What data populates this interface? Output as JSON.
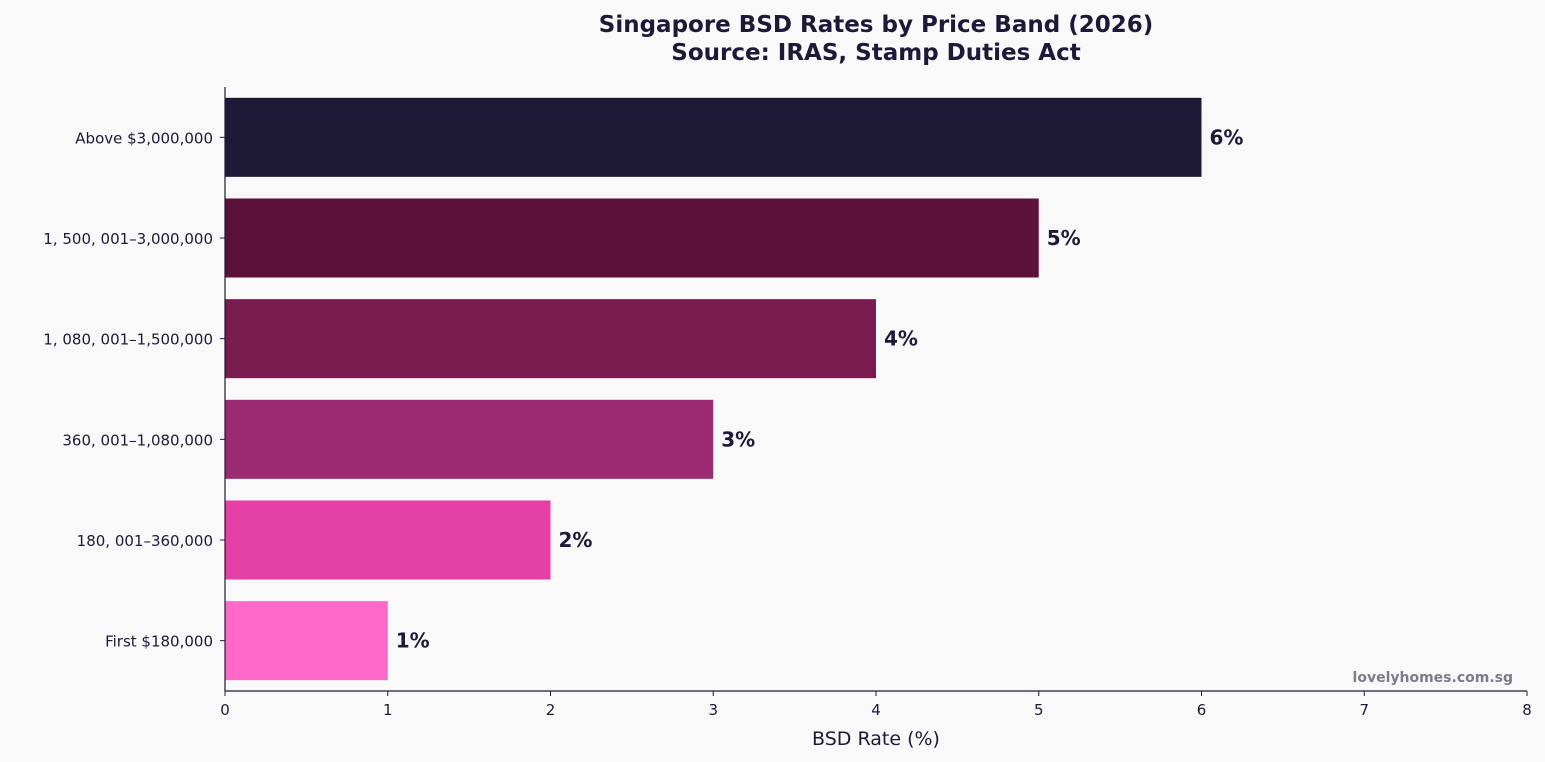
{
  "chart_data": {
    "type": "bar",
    "orientation": "horizontal",
    "title": "Singapore BSD Rates by Price Band (2026)",
    "subtitle": "Source: IRAS, Stamp Duties Act",
    "xlabel": "BSD Rate (%)",
    "ylabel": "",
    "categories": [
      "First $180,000",
      "180, 001–360,000",
      "360, 001–1,080,000",
      "1, 080, 001–1,500,000",
      "1, 500, 001–3,000,000",
      "Above $3,000,000"
    ],
    "values": [
      1,
      2,
      3,
      4,
      5,
      6
    ],
    "value_labels": [
      "1%",
      "2%",
      "3%",
      "4%",
      "5%",
      "6%"
    ],
    "bar_colors": [
      "#ff69c8",
      "#e540a6",
      "#9b2b72",
      "#7a1c50",
      "#5b1139",
      "#1e1936"
    ],
    "xlim": [
      0,
      8
    ],
    "xticks": [
      "0",
      "1",
      "2",
      "3",
      "4",
      "5",
      "6",
      "7",
      "8"
    ],
    "grid": false,
    "legend": "none",
    "watermark": "lovelyhomes.com.sg"
  },
  "colors": {
    "text": "#1e1936",
    "background": "#f9f9fa",
    "watermark": "#7d7b88"
  }
}
